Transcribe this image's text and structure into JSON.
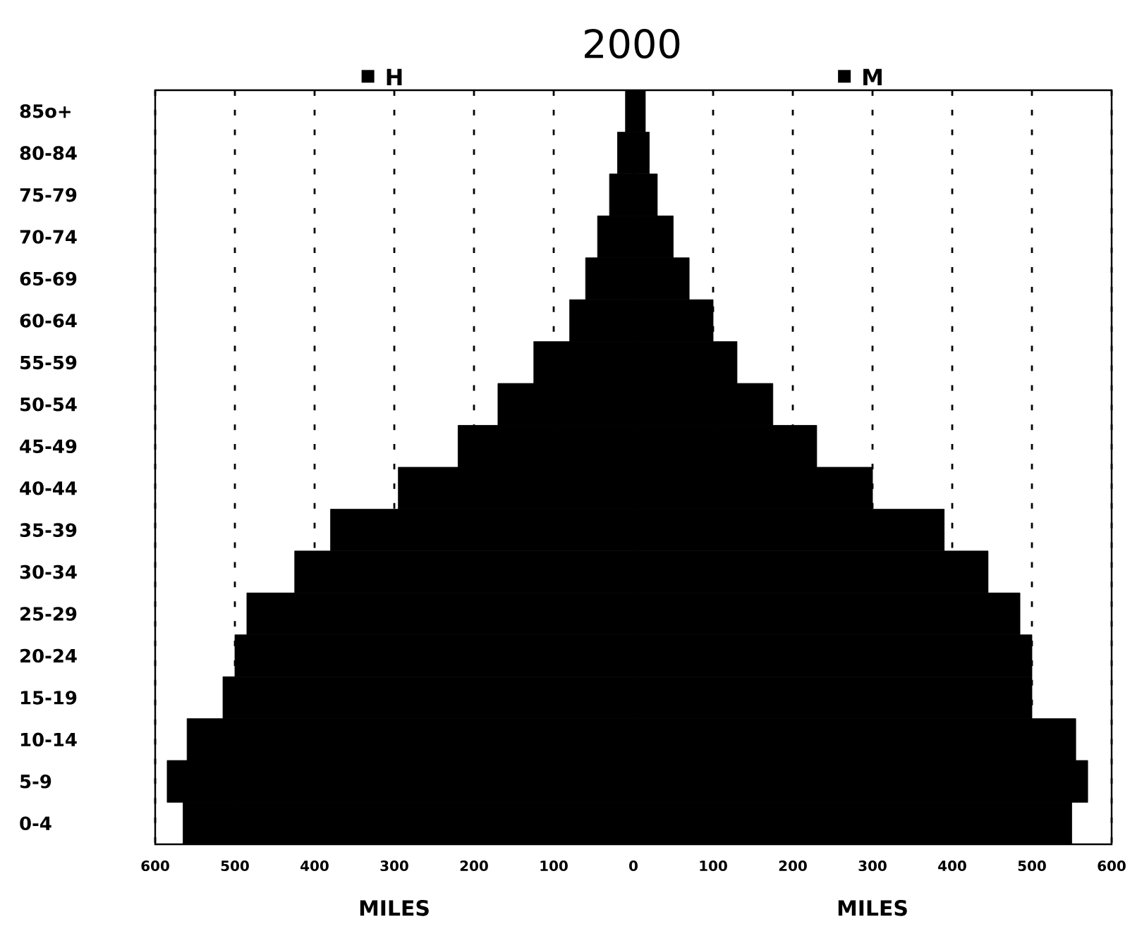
{
  "chart_data": {
    "type": "bar",
    "orientation": "horizontal",
    "title": "2000",
    "xlabel": "MILES",
    "categories": [
      "85o+",
      "80-84",
      "75-79",
      "70-74",
      "65-69",
      "60-64",
      "55-59",
      "50-54",
      "45-49",
      "40-44",
      "35-39",
      "30-34",
      "25-29",
      "20-24",
      "15-19",
      "10-14",
      "5-9",
      "0-4"
    ],
    "series": [
      {
        "name": "H",
        "color": "#000000",
        "values": [
          -10,
          -20,
          -30,
          -45,
          -60,
          -80,
          -125,
          -170,
          -220,
          -295,
          -380,
          -425,
          -485,
          -500,
          -515,
          -560,
          -585,
          -565
        ]
      },
      {
        "name": "M",
        "color": "#000000",
        "values": [
          15,
          20,
          30,
          50,
          70,
          100,
          130,
          175,
          230,
          300,
          390,
          445,
          485,
          500,
          500,
          555,
          570,
          550
        ]
      }
    ],
    "xlim": [
      -600,
      600
    ],
    "xticks": [
      {
        "value": -600,
        "label": "600"
      },
      {
        "value": -500,
        "label": "500"
      },
      {
        "value": -400,
        "label": "400"
      },
      {
        "value": -300,
        "label": "300"
      },
      {
        "value": -200,
        "label": "200"
      },
      {
        "value": -100,
        "label": "100"
      },
      0,
      100,
      200,
      300,
      400,
      500,
      600
    ],
    "grid": "x",
    "stacked": true,
    "legend": "top"
  }
}
